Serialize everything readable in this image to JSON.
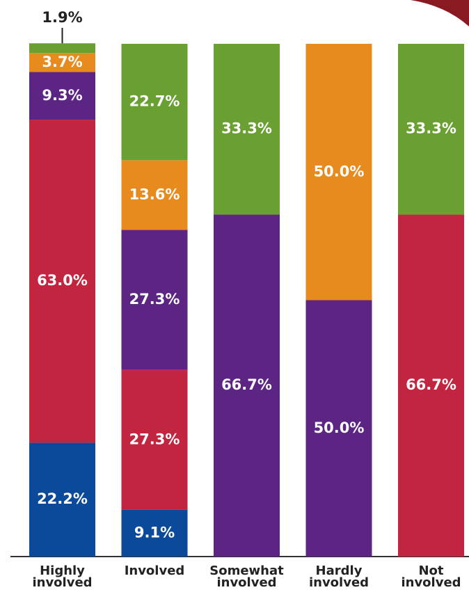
{
  "chart_data": {
    "type": "stacked_bar",
    "categories": [
      "Highly involved",
      "Involved",
      "Somewhat involved",
      "Hardly involved",
      "Not involved"
    ],
    "ylim": [
      0,
      100
    ],
    "series": [
      {
        "color": "#0b4a9a",
        "values": [
          22.2,
          9.1,
          null,
          null,
          null
        ],
        "value_labels": [
          "22.2%",
          "9.1%",
          null,
          null,
          null
        ]
      },
      {
        "color": "#c1253f",
        "values": [
          63.0,
          27.3,
          null,
          null,
          66.7
        ],
        "value_labels": [
          "63.0%",
          "27.3%",
          null,
          null,
          "66.7%"
        ]
      },
      {
        "color": "#5c2483",
        "values": [
          9.3,
          27.3,
          66.7,
          50.0,
          null
        ],
        "value_labels": [
          "9.3%",
          "27.3%",
          "66.7%",
          "50.0%",
          null
        ]
      },
      {
        "color": "#e88b1f",
        "values": [
          3.7,
          13.6,
          null,
          50.0,
          null
        ],
        "value_labels": [
          "3.7%",
          "13.6%",
          null,
          "50.0%",
          null
        ]
      },
      {
        "color": "#6a9f32",
        "values": [
          1.9,
          22.7,
          33.3,
          null,
          33.3
        ],
        "value_labels": [
          "1.9%",
          "22.7%",
          "33.3%",
          null,
          "33.3%"
        ]
      }
    ]
  }
}
